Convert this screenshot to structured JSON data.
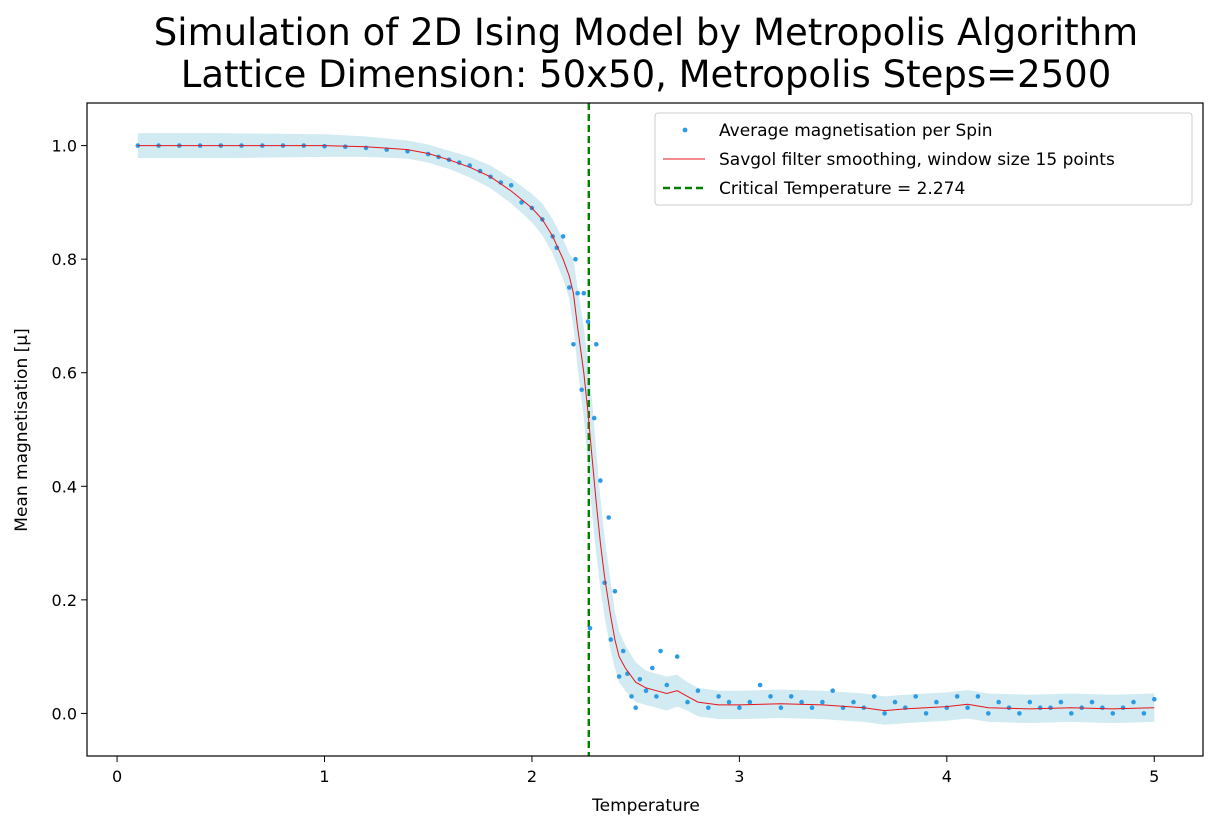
{
  "chart_data": {
    "type": "scatter",
    "title": [
      "Simulation of 2D Ising Model by Metropolis Algorithm",
      "Lattice Dimension: 50x50, Metropolis Steps=2500"
    ],
    "xlabel": "Temperature",
    "ylabel": "Mean magnetisation [μ]",
    "xlim": [
      -0.145,
      5.235
    ],
    "ylim": [
      -0.075,
      1.075
    ],
    "xticks": [
      "0",
      "1",
      "2",
      "3",
      "4",
      "5"
    ],
    "yticks": [
      "0.0",
      "0.2",
      "0.4",
      "0.6",
      "0.8",
      "1.0"
    ],
    "grid": false,
    "legend": {
      "position": "top-right",
      "entries": [
        "Average magnetisation per Spin",
        "Savgol filter smoothing, window size 15 points",
        "Critical Temperature = 2.274"
      ]
    },
    "critical_temperature": 2.274,
    "series": [
      {
        "name": "Average magnetisation per Spin",
        "kind": "scatter",
        "color": "#2b9be6",
        "x": [
          0.1,
          0.2,
          0.3,
          0.4,
          0.5,
          0.6,
          0.7,
          0.8,
          0.9,
          1.0,
          1.1,
          1.2,
          1.3,
          1.4,
          1.5,
          1.55,
          1.6,
          1.65,
          1.7,
          1.75,
          1.8,
          1.85,
          1.9,
          1.95,
          2.0,
          2.05,
          2.1,
          2.12,
          2.15,
          2.18,
          2.2,
          2.21,
          2.22,
          2.24,
          2.25,
          2.27,
          2.28,
          2.3,
          2.31,
          2.33,
          2.35,
          2.37,
          2.38,
          2.4,
          2.42,
          2.44,
          2.46,
          2.48,
          2.5,
          2.52,
          2.55,
          2.58,
          2.6,
          2.62,
          2.65,
          2.7,
          2.75,
          2.8,
          2.85,
          2.9,
          2.95,
          3.0,
          3.05,
          3.1,
          3.15,
          3.2,
          3.25,
          3.3,
          3.35,
          3.4,
          3.45,
          3.5,
          3.55,
          3.6,
          3.65,
          3.7,
          3.75,
          3.8,
          3.85,
          3.9,
          3.95,
          4.0,
          4.05,
          4.1,
          4.15,
          4.2,
          4.25,
          4.3,
          4.35,
          4.4,
          4.45,
          4.5,
          4.55,
          4.6,
          4.65,
          4.7,
          4.75,
          4.8,
          4.85,
          4.9,
          4.95,
          5.0
        ],
        "y": [
          1.0,
          1.0,
          1.0,
          1.0,
          1.0,
          1.0,
          1.0,
          1.0,
          1.0,
          0.999,
          0.998,
          0.996,
          0.993,
          0.99,
          0.985,
          0.98,
          0.975,
          0.97,
          0.965,
          0.955,
          0.945,
          0.935,
          0.93,
          0.9,
          0.89,
          0.87,
          0.84,
          0.82,
          0.84,
          0.75,
          0.65,
          0.8,
          0.74,
          0.57,
          0.74,
          0.69,
          0.15,
          0.52,
          0.65,
          0.41,
          0.23,
          0.345,
          0.13,
          0.215,
          0.065,
          0.11,
          0.07,
          0.03,
          0.01,
          0.06,
          0.04,
          0.08,
          0.03,
          0.11,
          0.05,
          0.1,
          0.02,
          0.04,
          0.01,
          0.03,
          0.02,
          0.01,
          0.02,
          0.05,
          0.03,
          0.01,
          0.03,
          0.02,
          0.01,
          0.02,
          0.04,
          0.01,
          0.02,
          0.01,
          0.03,
          0.0,
          0.02,
          0.01,
          0.03,
          0.0,
          0.02,
          0.01,
          0.03,
          0.01,
          0.03,
          0.0,
          0.02,
          0.01,
          0.0,
          0.02,
          0.01,
          0.01,
          0.02,
          0.0,
          0.01,
          0.02,
          0.01,
          0.0,
          0.01,
          0.02,
          0.0,
          0.025
        ]
      },
      {
        "name": "Savgol filter smoothing, window size 15 points",
        "kind": "line",
        "color": "#e8141c",
        "x": [
          0.1,
          0.5,
          1.0,
          1.2,
          1.4,
          1.5,
          1.6,
          1.7,
          1.8,
          1.9,
          2.0,
          2.05,
          2.1,
          2.15,
          2.18,
          2.2,
          2.22,
          2.25,
          2.27,
          2.29,
          2.31,
          2.33,
          2.35,
          2.38,
          2.4,
          2.42,
          2.45,
          2.5,
          2.55,
          2.6,
          2.65,
          2.7,
          2.75,
          2.8,
          2.9,
          3.0,
          3.2,
          3.4,
          3.6,
          3.7,
          3.8,
          4.0,
          4.1,
          4.2,
          4.4,
          4.6,
          4.8,
          5.0
        ],
        "y": [
          1.0,
          1.0,
          1.0,
          0.998,
          0.993,
          0.986,
          0.975,
          0.962,
          0.945,
          0.92,
          0.89,
          0.87,
          0.84,
          0.8,
          0.77,
          0.74,
          0.68,
          0.6,
          0.53,
          0.45,
          0.37,
          0.3,
          0.24,
          0.17,
          0.13,
          0.1,
          0.08,
          0.055,
          0.045,
          0.04,
          0.035,
          0.04,
          0.03,
          0.02,
          0.015,
          0.015,
          0.017,
          0.015,
          0.01,
          0.005,
          0.008,
          0.012,
          0.016,
          0.01,
          0.008,
          0.01,
          0.008,
          0.01
        ]
      }
    ],
    "error_band": {
      "color": "#add8e6",
      "x": [
        0.1,
        0.5,
        1.0,
        1.2,
        1.4,
        1.5,
        1.6,
        1.7,
        1.8,
        1.9,
        2.0,
        2.05,
        2.1,
        2.15,
        2.18,
        2.2,
        2.22,
        2.25,
        2.27,
        2.29,
        2.31,
        2.33,
        2.35,
        2.38,
        2.4,
        2.42,
        2.45,
        2.5,
        2.55,
        2.6,
        2.65,
        2.7,
        2.75,
        2.8,
        2.9,
        3.0,
        3.2,
        3.4,
        3.6,
        3.7,
        3.8,
        4.0,
        4.1,
        4.2,
        4.4,
        4.6,
        4.8,
        5.0
      ],
      "halfwidth": [
        0.022,
        0.022,
        0.02,
        0.018,
        0.016,
        0.016,
        0.016,
        0.018,
        0.02,
        0.022,
        0.025,
        0.028,
        0.03,
        0.035,
        0.04,
        0.06,
        0.07,
        0.08,
        0.09,
        0.1,
        0.09,
        0.08,
        0.07,
        0.06,
        0.05,
        0.045,
        0.04,
        0.035,
        0.03,
        0.03,
        0.03,
        0.028,
        0.025,
        0.025,
        0.025,
        0.025,
        0.025,
        0.025,
        0.025,
        0.025,
        0.025,
        0.025,
        0.025,
        0.025,
        0.025,
        0.025,
        0.025,
        0.025
      ]
    }
  }
}
